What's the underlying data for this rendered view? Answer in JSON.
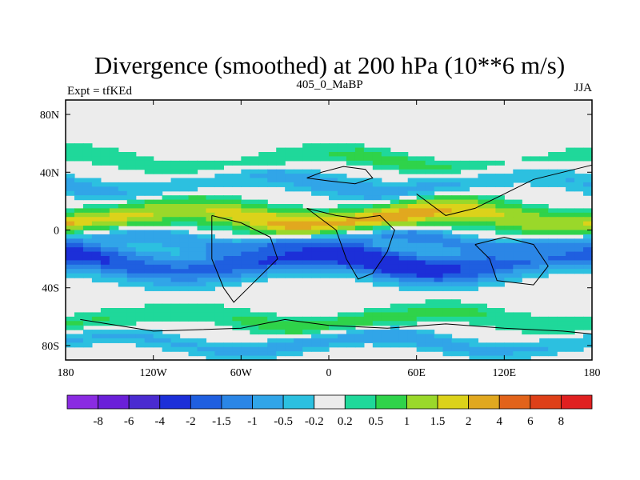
{
  "chart_data": {
    "type": "heatmap",
    "title": "Divergence (smoothed) at 200 hPa (10**6 m/s)",
    "left_label": "Expt = tfKEd",
    "center_label": "405_0_MaBP",
    "right_label": "JJA",
    "x_ticks": [
      "180",
      "120W",
      "60W",
      "0",
      "60E",
      "120E",
      "180"
    ],
    "y_ticks": [
      "80N",
      "40N",
      "0",
      "40S",
      "80S"
    ],
    "xlim": [
      -180,
      180
    ],
    "ylim": [
      -90,
      90
    ],
    "colorbar": {
      "labels": [
        "-8",
        "-6",
        "-4",
        "-2",
        "-1.5",
        "-1",
        "-0.5",
        "-0.2",
        "0.2",
        "0.5",
        "1",
        "1.5",
        "2",
        "4",
        "6",
        "8"
      ],
      "colors": [
        "#8a2be2",
        "#6a1fd8",
        "#4a2bd0",
        "#1c2fd8",
        "#1f5fe0",
        "#2b86e6",
        "#31a5e8",
        "#2cc0e0",
        "#ececec",
        "#1fd89a",
        "#2fd34a",
        "#9ad82a",
        "#dcd21a",
        "#e1a81f",
        "#e2631a",
        "#de4018",
        "#e02020"
      ]
    },
    "field_bands": [
      {
        "lat": 60,
        "halfwidth": 8,
        "value": 0.0
      },
      {
        "lat": 48,
        "halfwidth": 6,
        "value": 0.6
      },
      {
        "lat": 32,
        "halfwidth": 7,
        "value": -0.7
      },
      {
        "lat": 8,
        "halfwidth": 9,
        "value": 2.2
      },
      {
        "lat": -8,
        "halfwidth": 6,
        "value": -1.4
      },
      {
        "lat": -22,
        "halfwidth": 10,
        "value": -2.4
      },
      {
        "lat": -45,
        "halfwidth": 7,
        "value": 0.0
      },
      {
        "lat": -62,
        "halfwidth": 7,
        "value": 0.7
      },
      {
        "lat": -78,
        "halfwidth": 6,
        "value": -0.8
      }
    ]
  }
}
